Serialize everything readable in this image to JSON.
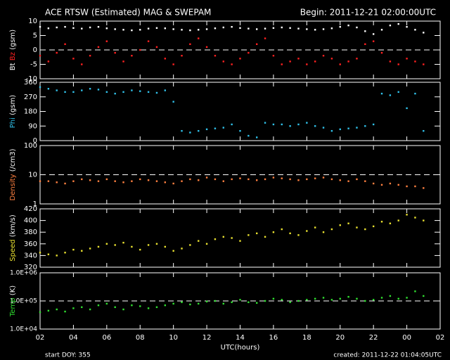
{
  "header": {
    "title": "ACE RTSW (Estimated) MAG & SWEPAM",
    "begin": "Begin: 2011-12-21 02:00:00UTC"
  },
  "footer": {
    "start": "start DOY: 355",
    "created": "created: 2011-12-22 01:04:05UTC"
  },
  "chart_data": [
    {
      "type": "scatter",
      "ylabel_unit": "(gsm)",
      "ylim": [
        -10,
        10
      ],
      "yticks": [
        -10,
        -5,
        0,
        5,
        10
      ],
      "reference_line": 0,
      "xlim": [
        2,
        26
      ],
      "x": [
        2,
        2.5,
        3,
        3.5,
        4,
        4.5,
        5,
        5.5,
        6,
        6.5,
        7,
        7.5,
        8,
        8.5,
        9,
        9.5,
        10,
        10.5,
        11,
        11.5,
        12,
        12.5,
        13,
        13.5,
        14,
        14.5,
        15,
        15.5,
        16,
        16.5,
        17,
        17.5,
        18,
        18.5,
        19,
        19.5,
        20,
        20.5,
        21,
        21.5,
        22,
        22.5,
        23,
        23.5,
        24,
        24.5,
        25
      ],
      "series": [
        {
          "name": "Bt",
          "color": "#ffffff",
          "values": [
            8,
            7.5,
            7.8,
            8,
            7.6,
            7.4,
            7.8,
            8,
            7.5,
            7.2,
            7,
            6.8,
            7,
            7.4,
            7.6,
            7.5,
            7.2,
            7,
            6.8,
            7,
            7.2,
            7.5,
            7.8,
            8,
            7.6,
            7.4,
            7.2,
            7.4,
            7.6,
            7.8,
            7.6,
            7.4,
            7.2,
            7,
            7.2,
            7.5,
            8,
            8.5,
            7.8,
            6.5,
            5.5,
            7,
            8.5,
            9,
            8,
            7,
            6
          ]
        },
        {
          "name": "Bz",
          "color": "#ff2020",
          "values": [
            -2,
            -4,
            -1,
            2,
            -3,
            -5,
            -2,
            1,
            3,
            -1,
            -4,
            -2,
            0,
            3,
            1,
            -3,
            -5,
            -2,
            2,
            4,
            1,
            -2,
            -4,
            -5,
            -3,
            -1,
            2,
            4,
            -2,
            -5,
            -4,
            -3,
            -5,
            -4,
            -2,
            -3,
            -5,
            -4,
            -3,
            2,
            3,
            -1,
            -4,
            -5,
            -3,
            -4,
            -5
          ]
        }
      ]
    },
    {
      "type": "scatter",
      "ylabel_unit": "(gsm)",
      "ylim": [
        0,
        360
      ],
      "yticks": [
        0,
        90,
        180,
        270,
        360
      ],
      "xlim": [
        2,
        26
      ],
      "x": [
        2,
        2.5,
        3,
        3.5,
        4,
        4.5,
        5,
        5.5,
        6,
        6.5,
        7,
        7.5,
        8,
        8.5,
        9,
        9.5,
        10,
        10.5,
        11,
        11.5,
        12,
        12.5,
        13,
        13.5,
        14,
        14.5,
        15,
        15.5,
        16,
        16.5,
        17,
        17.5,
        18,
        18.5,
        19,
        19.5,
        20,
        20.5,
        21,
        21.5,
        22,
        22.5,
        23,
        23.5,
        24,
        24.5,
        25
      ],
      "series": [
        {
          "name": "Phi",
          "color": "#30c0e8",
          "values": [
            330,
            320,
            310,
            300,
            300,
            310,
            320,
            315,
            300,
            290,
            300,
            310,
            305,
            300,
            295,
            310,
            240,
            60,
            50,
            60,
            70,
            75,
            80,
            100,
            60,
            30,
            20,
            110,
            100,
            100,
            90,
            100,
            110,
            90,
            80,
            60,
            70,
            75,
            80,
            90,
            100,
            290,
            280,
            300,
            200,
            290,
            60
          ]
        }
      ]
    },
    {
      "type": "scatter",
      "log": true,
      "ylabel_unit": "(/cm3)",
      "ylim": [
        1,
        100
      ],
      "yticks": [
        1,
        10,
        100
      ],
      "reference_line": 10,
      "xlim": [
        2,
        26
      ],
      "x": [
        2,
        2.5,
        3,
        3.5,
        4,
        4.5,
        5,
        5.5,
        6,
        6.5,
        7,
        7.5,
        8,
        8.5,
        9,
        9.5,
        10,
        10.5,
        11,
        11.5,
        12,
        12.5,
        13,
        13.5,
        14,
        14.5,
        15,
        15.5,
        16,
        16.5,
        17,
        17.5,
        18,
        18.5,
        19,
        19.5,
        20,
        20.5,
        21,
        21.5,
        22,
        22.5,
        23,
        23.5,
        24,
        24.5,
        25
      ],
      "series": [
        {
          "name": "Density",
          "color": "#ff8040",
          "values": [
            6,
            6,
            5.5,
            5,
            6,
            7,
            6.5,
            6,
            7,
            6,
            5.5,
            6,
            7,
            6.5,
            6,
            5.5,
            5,
            6,
            7,
            6.5,
            8,
            7,
            6,
            7,
            7.5,
            7,
            6.5,
            7,
            8,
            7.5,
            7,
            6.5,
            7,
            7.5,
            8,
            7,
            6.5,
            6,
            7,
            6,
            5,
            4.5,
            5,
            4.5,
            4,
            4,
            3.5
          ]
        }
      ]
    },
    {
      "type": "scatter",
      "ylabel_unit": "(km/s)",
      "ylim": [
        320,
        420
      ],
      "yticks": [
        320,
        340,
        360,
        380,
        400,
        420
      ],
      "xlim": [
        2,
        26
      ],
      "x": [
        2,
        2.5,
        3,
        3.5,
        4,
        4.5,
        5,
        5.5,
        6,
        6.5,
        7,
        7.5,
        8,
        8.5,
        9,
        9.5,
        10,
        10.5,
        11,
        11.5,
        12,
        12.5,
        13,
        13.5,
        14,
        14.5,
        15,
        15.5,
        16,
        16.5,
        17,
        17.5,
        18,
        18.5,
        19,
        19.5,
        20,
        20.5,
        21,
        21.5,
        22,
        22.5,
        23,
        23.5,
        24,
        24.5,
        25
      ],
      "series": [
        {
          "name": "Speed",
          "color": "#e8e030",
          "values": [
            345,
            342,
            340,
            345,
            350,
            348,
            352,
            355,
            360,
            358,
            362,
            355,
            350,
            358,
            360,
            355,
            348,
            352,
            358,
            365,
            360,
            368,
            372,
            370,
            365,
            375,
            378,
            372,
            380,
            385,
            378,
            375,
            382,
            388,
            380,
            385,
            392,
            395,
            388,
            385,
            390,
            398,
            395,
            400,
            410,
            405,
            400
          ]
        }
      ]
    },
    {
      "type": "scatter",
      "log": true,
      "ylabel_unit": "(K)",
      "ylim": [
        10000,
        1000000
      ],
      "yticks": [
        {
          "value": 10000,
          "label": "1.0E+04"
        },
        {
          "value": 100000,
          "label": "1.0E+05"
        },
        {
          "value": 1000000,
          "label": "1.0E+06"
        }
      ],
      "reference_line": 100000,
      "xlim": [
        2,
        26
      ],
      "xlabel": "UTC(hours)",
      "xticks": [
        {
          "value": 2,
          "label": "02"
        },
        {
          "value": 4,
          "label": "04"
        },
        {
          "value": 6,
          "label": "06"
        },
        {
          "value": 8,
          "label": "08"
        },
        10,
        12,
        14,
        16,
        18,
        20,
        22,
        {
          "value": 24,
          "label": "00"
        },
        {
          "value": 26,
          "label": "02"
        }
      ],
      "x": [
        2,
        2.5,
        3,
        3.5,
        4,
        4.5,
        5,
        5.5,
        6,
        6.5,
        7,
        7.5,
        8,
        8.5,
        9,
        9.5,
        10,
        10.5,
        11,
        11.5,
        12,
        12.5,
        13,
        13.5,
        14,
        14.5,
        15,
        15.5,
        16,
        16.5,
        17,
        17.5,
        18,
        18.5,
        19,
        19.5,
        20,
        20.5,
        21,
        21.5,
        22,
        22.5,
        23,
        23.5,
        24,
        24.5,
        25
      ],
      "series": [
        {
          "name": "Temp",
          "color": "#30e030",
          "values": [
            40000,
            45000,
            50000,
            42000,
            55000,
            60000,
            50000,
            70000,
            80000,
            60000,
            50000,
            70000,
            65000,
            55000,
            60000,
            70000,
            80000,
            90000,
            75000,
            80000,
            95000,
            100000,
            80000,
            90000,
            110000,
            90000,
            85000,
            100000,
            120000,
            110000,
            90000,
            100000,
            110000,
            120000,
            130000,
            110000,
            120000,
            140000,
            120000,
            100000,
            110000,
            130000,
            150000,
            120000,
            130000,
            220000,
            150000
          ]
        }
      ]
    }
  ]
}
